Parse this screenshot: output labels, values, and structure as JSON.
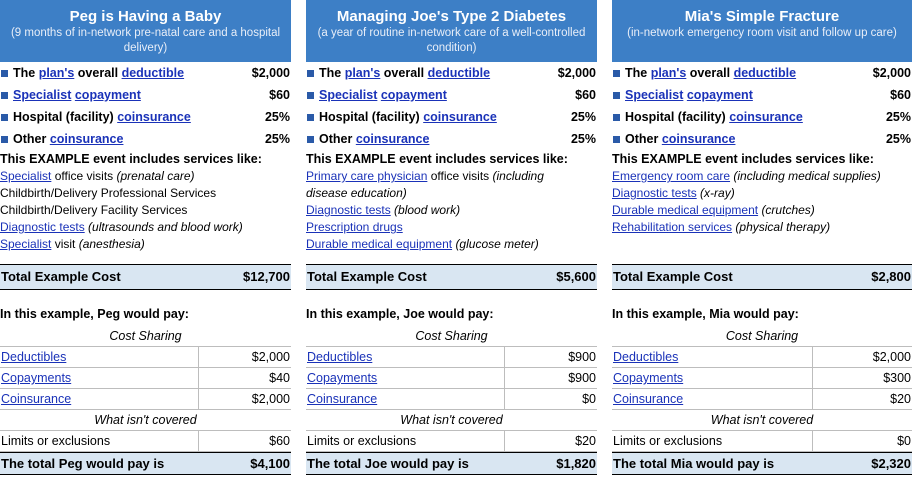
{
  "columns": [
    {
      "title": "Peg is Having a Baby",
      "subtitle": "(9 months of in-network pre-natal care and a hospital delivery)",
      "ded_pre": "The ",
      "ded_link1": "plan's",
      "ded_mid": " overall ",
      "ded_link2": "deductible",
      "ded_value": "$2,000",
      "spec_link1": "Specialist",
      "spec_link2": "copayment",
      "spec_value": "$60",
      "hosp_pre": "Hospital (facility) ",
      "hosp_link": "coinsurance",
      "hosp_value": "25%",
      "other_pre": "Other ",
      "other_link": "coinsurance",
      "other_value": "25%",
      "example_heading": "This EXAMPLE event includes services like:",
      "services": [
        {
          "link": "Specialist",
          "text": " office visits ",
          "note": "(prenatal care)"
        },
        {
          "link": "",
          "text": "Childbirth/Delivery Professional Services",
          "note": ""
        },
        {
          "link": "",
          "text": "Childbirth/Delivery Facility Services",
          "note": ""
        },
        {
          "link": "Diagnostic tests",
          "text": " ",
          "note": "(ultrasounds and blood work)"
        },
        {
          "link": "Specialist",
          "text": " visit ",
          "note": "(anesthesia)"
        }
      ],
      "total_label": "Total Example Cost",
      "total_value": "$12,700",
      "pay_heading": "In this example, Peg would pay:",
      "cost_sharing_label": "Cost Sharing",
      "deductibles_label": "Deductibles",
      "deductibles_value": "$2,000",
      "copayments_label": "Copayments",
      "copayments_value": "$40",
      "coinsurance_label": "Coinsurance",
      "coinsurance_value": "$2,000",
      "not_covered_label": "What isn't covered",
      "limits_label": "Limits or exclusions",
      "limits_value": "$60",
      "final_label": "The total Peg would pay is",
      "final_value": "$4,100"
    },
    {
      "title": "Managing Joe's Type 2 Diabetes",
      "subtitle": "(a year of routine in-network care of a well-controlled condition)",
      "ded_pre": "The ",
      "ded_link1": "plan's",
      "ded_mid": " overall ",
      "ded_link2": "deductible",
      "ded_value": "$2,000",
      "spec_link1": "Specialist",
      "spec_link2": "copayment",
      "spec_value": "$60",
      "hosp_pre": "Hospital (facility) ",
      "hosp_link": "coinsurance",
      "hosp_value": "25%",
      "other_pre": "Other ",
      "other_link": "coinsurance",
      "other_value": "25%",
      "example_heading": "This EXAMPLE event includes services like:",
      "services": [
        {
          "link": "Primary care physician",
          "text": " office visits ",
          "note": "(including"
        },
        {
          "link": "",
          "text": "",
          "note": "disease education)"
        },
        {
          "link": "Diagnostic tests",
          "text": " ",
          "note": "(blood work)"
        },
        {
          "link": "Prescription drugs",
          "text": "",
          "note": ""
        },
        {
          "link": "Durable medical equipment",
          "text": " ",
          "note": "(glucose meter)"
        }
      ],
      "total_label": "Total Example Cost",
      "total_value": "$5,600",
      "pay_heading": "In this example, Joe would pay:",
      "cost_sharing_label": "Cost Sharing",
      "deductibles_label": "Deductibles",
      "deductibles_value": "$900",
      "copayments_label": "Copayments",
      "copayments_value": "$900",
      "coinsurance_label": "Coinsurance",
      "coinsurance_value": "$0",
      "not_covered_label": "What isn't covered",
      "limits_label": "Limits or exclusions",
      "limits_value": "$20",
      "final_label": "The total Joe would pay is",
      "final_value": "$1,820"
    },
    {
      "title": "Mia's Simple Fracture",
      "subtitle": "(in-network emergency room visit and follow up care)",
      "ded_pre": "The ",
      "ded_link1": "plan's",
      "ded_mid": " overall ",
      "ded_link2": "deductible",
      "ded_value": "$2,000",
      "spec_link1": "Specialist",
      "spec_link2": "copayment",
      "spec_value": "$60",
      "hosp_pre": "Hospital (facility) ",
      "hosp_link": "coinsurance",
      "hosp_value": "25%",
      "other_pre": "Other ",
      "other_link": "coinsurance",
      "other_value": "25%",
      "example_heading": "This EXAMPLE event includes services like:",
      "services": [
        {
          "link": "Emergency room care",
          "text": " ",
          "note": "(including medical supplies)"
        },
        {
          "link": "Diagnostic tests",
          "text": " ",
          "note": "(x-ray)"
        },
        {
          "link": "Durable medical equipment",
          "text": " ",
          "note": "(crutches)"
        },
        {
          "link": "Rehabilitation services",
          "text": " ",
          "note": "(physical therapy)"
        }
      ],
      "total_label": "Total Example Cost",
      "total_value": "$2,800",
      "pay_heading": "In this example, Mia would pay:",
      "cost_sharing_label": "Cost Sharing",
      "deductibles_label": "Deductibles",
      "deductibles_value": "$2,000",
      "copayments_label": "Copayments",
      "copayments_value": "$300",
      "coinsurance_label": "Coinsurance",
      "coinsurance_value": "$20",
      "not_covered_label": "What isn't covered",
      "limits_label": "Limits or exclusions",
      "limits_value": "$0",
      "final_label": "The total Mia would pay is",
      "final_value": "$2,320"
    }
  ]
}
